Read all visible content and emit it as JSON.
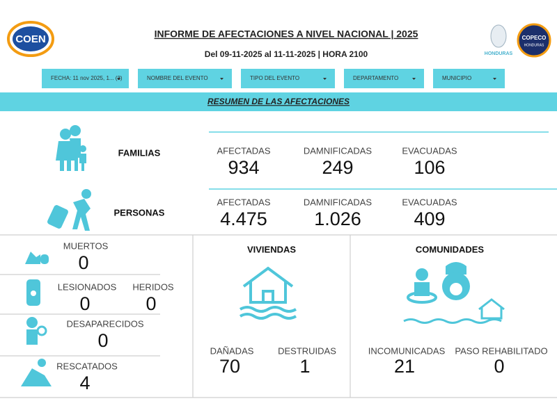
{
  "header": {
    "logo_left": "COEN",
    "title": "INFORME DE AFECTACIONES A NIVEL NACIONAL | 2025",
    "subtitle": "Del 09-11-2025 al 11-11-2025 | HORA 2100",
    "logo_country": "HONDURAS",
    "logo_agency": "COPECO",
    "logo_agency_country": "HONDURAS"
  },
  "filters": [
    "FECHA: 11 nov 2025, 1... (3)",
    "NOMBRE DEL EVENTO",
    "TIPO DEL EVENTO",
    "DEPARTAMENTO",
    "MUNICIPIO"
  ],
  "banner": "RESUMEN DE LAS AFECTACIONES",
  "summary": [
    {
      "label": "FAMILIAS",
      "stats": [
        {
          "label": "AFECTADAS",
          "value": "934"
        },
        {
          "label": "DAMNIFICADAS",
          "value": "249"
        },
        {
          "label": "EVACUADAS",
          "value": "106"
        }
      ]
    },
    {
      "label": "PERSONAS",
      "stats": [
        {
          "label": "AFECTADAS",
          "value": "4.475"
        },
        {
          "label": "DAMNIFICADAS",
          "value": "1.026"
        },
        {
          "label": "EVACUADAS",
          "value": "409"
        }
      ]
    }
  ],
  "people": [
    [
      {
        "label": "MUERTOS",
        "value": "0"
      }
    ],
    [
      {
        "label": "LESIONADOS",
        "value": "0"
      },
      {
        "label": "HERIDOS",
        "value": "0"
      }
    ],
    [
      {
        "label": "DESAPARECIDOS",
        "value": "0"
      }
    ],
    [
      {
        "label": "RESCATADOS",
        "value": "4"
      }
    ]
  ],
  "viviendas": {
    "title": "VIVIENDAS",
    "stats": [
      {
        "label": "DAÑADAS",
        "value": "70"
      },
      {
        "label": "DESTRUIDAS",
        "value": "1"
      }
    ]
  },
  "comunidades": {
    "title": "COMUNIDADES",
    "stats": [
      {
        "label": "INCOMUNICADAS",
        "value": "21"
      },
      {
        "label": "PASO REHABILITADO",
        "value": "0"
      }
    ]
  }
}
